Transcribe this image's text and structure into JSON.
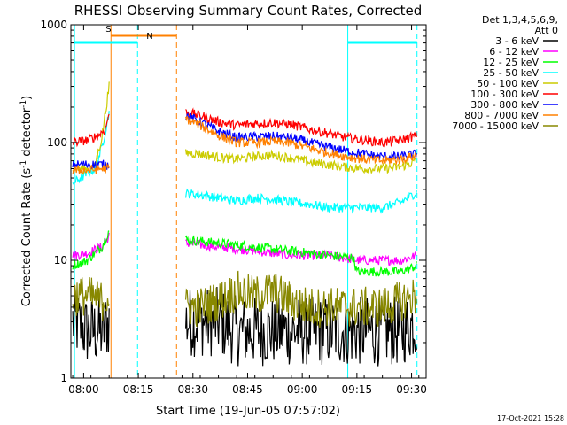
{
  "chart_data": {
    "type": "line",
    "title": "RHESSI Observing Summary Count Rates, Corrected",
    "xlabel": "Start Time (19-Jun-05 07:57:02)",
    "ylabel_main": "Corrected Count Rate (s",
    "ylabel_sup1": "-1",
    "ylabel_mid": " detector",
    "ylabel_sup2": "-1",
    "ylabel_end": ")",
    "y_scale": "log",
    "ylim": [
      1,
      1000
    ],
    "xlim_minutes": [
      -0.5,
      97
    ],
    "x_ticks": [
      {
        "label": "08:00",
        "min": 3
      },
      {
        "label": "08:15",
        "min": 18
      },
      {
        "label": "08:30",
        "min": 33
      },
      {
        "label": "08:45",
        "min": 48
      },
      {
        "label": "09:00",
        "min": 63
      },
      {
        "label": "09:15",
        "min": 78
      },
      {
        "label": "09:30",
        "min": 93
      }
    ],
    "y_ticks": [
      {
        "label": "1",
        "value": 1
      },
      {
        "label": "10",
        "value": 10
      },
      {
        "label": "100",
        "value": 100
      },
      {
        "label": "1000",
        "value": 1000
      }
    ],
    "legend_title": [
      "Det 1,3,4,5,6,9,",
      "Att 0"
    ],
    "legend_placement": "right",
    "series": [
      {
        "name": "3 - 6 keV",
        "color": "#000000",
        "seg1": [
          [
            0,
            3
          ],
          [
            4,
            2.5
          ],
          [
            8,
            2.5
          ],
          [
            10,
            3
          ]
        ],
        "seg2": [
          [
            31,
            3
          ],
          [
            40,
            3
          ],
          [
            45,
            2.5
          ],
          [
            50,
            2.5
          ],
          [
            55,
            2.5
          ],
          [
            60,
            2.5
          ],
          [
            65,
            2.5
          ],
          [
            70,
            2.5
          ],
          [
            75,
            2.5
          ],
          [
            80,
            2.5
          ],
          [
            85,
            2.5
          ],
          [
            90,
            2.5
          ],
          [
            94.5,
            3
          ]
        ]
      },
      {
        "name": "6 - 12 keV",
        "color": "#ff00ff",
        "seg1": [
          [
            0,
            11
          ],
          [
            4,
            11.5
          ],
          [
            8,
            13
          ],
          [
            10,
            16
          ]
        ],
        "seg2": [
          [
            31,
            14
          ],
          [
            40,
            13
          ],
          [
            50,
            12
          ],
          [
            60,
            11
          ],
          [
            70,
            11
          ],
          [
            78,
            10
          ],
          [
            85,
            10
          ],
          [
            90,
            10
          ],
          [
            94.5,
            11
          ]
        ]
      },
      {
        "name": "12 - 25 keV",
        "color": "#00ff00",
        "seg1": [
          [
            0,
            9
          ],
          [
            4,
            10
          ],
          [
            8,
            13
          ],
          [
            10,
            18
          ]
        ],
        "seg2": [
          [
            31,
            15
          ],
          [
            40,
            14
          ],
          [
            50,
            13
          ],
          [
            60,
            12
          ],
          [
            70,
            11
          ],
          [
            77,
            10.5
          ],
          [
            78,
            8
          ],
          [
            85,
            8
          ],
          [
            90,
            8
          ],
          [
            94.5,
            9
          ]
        ]
      },
      {
        "name": "25 - 50 keV",
        "color": "#00ffff",
        "seg1": [
          [
            0,
            45
          ],
          [
            4,
            55
          ],
          [
            6,
            60
          ],
          [
            8,
            90
          ],
          [
            10,
            180
          ]
        ],
        "seg2": [
          [
            31,
            37
          ],
          [
            35,
            36
          ],
          [
            40,
            34
          ],
          [
            45,
            32
          ],
          [
            50,
            34
          ],
          [
            55,
            33
          ],
          [
            60,
            31
          ],
          [
            65,
            30
          ],
          [
            70,
            28
          ],
          [
            75,
            28
          ],
          [
            80,
            28
          ],
          [
            85,
            28
          ],
          [
            90,
            31
          ],
          [
            94.5,
            38
          ]
        ]
      },
      {
        "name": "50 - 100 keV",
        "color": "#cccc00",
        "seg1": [
          [
            0,
            60
          ],
          [
            4,
            60
          ],
          [
            6,
            62
          ],
          [
            8,
            110
          ],
          [
            10,
            300
          ]
        ],
        "seg2": [
          [
            31,
            82
          ],
          [
            35,
            80
          ],
          [
            40,
            75
          ],
          [
            45,
            72
          ],
          [
            50,
            76
          ],
          [
            55,
            78
          ],
          [
            60,
            74
          ],
          [
            65,
            68
          ],
          [
            70,
            65
          ],
          [
            75,
            62
          ],
          [
            80,
            60
          ],
          [
            85,
            60
          ],
          [
            90,
            62
          ],
          [
            94.5,
            70
          ]
        ]
      },
      {
        "name": "100 - 300 keV",
        "color": "#ff0000",
        "seg1": [
          [
            0,
            100
          ],
          [
            4,
            105
          ],
          [
            7,
            115
          ],
          [
            9,
            130
          ],
          [
            10,
            180
          ]
        ],
        "seg2": [
          [
            31,
            180
          ],
          [
            35,
            170
          ],
          [
            40,
            150
          ],
          [
            45,
            140
          ],
          [
            50,
            145
          ],
          [
            55,
            148
          ],
          [
            60,
            142
          ],
          [
            65,
            130
          ],
          [
            70,
            120
          ],
          [
            75,
            110
          ],
          [
            80,
            105
          ],
          [
            85,
            100
          ],
          [
            90,
            105
          ],
          [
            94.5,
            115
          ]
        ]
      },
      {
        "name": "300 - 800 keV",
        "color": "#0000ff",
        "seg1": [
          [
            0,
            65
          ],
          [
            4,
            65
          ],
          [
            8,
            65
          ],
          [
            10,
            65
          ]
        ],
        "seg2": [
          [
            31,
            170
          ],
          [
            35,
            150
          ],
          [
            40,
            125
          ],
          [
            45,
            110
          ],
          [
            50,
            112
          ],
          [
            55,
            113
          ],
          [
            60,
            110
          ],
          [
            65,
            100
          ],
          [
            70,
            92
          ],
          [
            75,
            85
          ],
          [
            80,
            80
          ],
          [
            85,
            76
          ],
          [
            90,
            76
          ],
          [
            94.5,
            80
          ]
        ]
      },
      {
        "name": "800 - 7000 keV",
        "color": "#ff8000",
        "seg1": [
          [
            0,
            58
          ],
          [
            4,
            58
          ],
          [
            8,
            60
          ],
          [
            10,
            60
          ]
        ],
        "seg2": [
          [
            31,
            160
          ],
          [
            35,
            140
          ],
          [
            40,
            115
          ],
          [
            45,
            100
          ],
          [
            50,
            100
          ],
          [
            55,
            102
          ],
          [
            60,
            98
          ],
          [
            65,
            90
          ],
          [
            70,
            82
          ],
          [
            75,
            76
          ],
          [
            80,
            72
          ],
          [
            85,
            70
          ],
          [
            90,
            72
          ],
          [
            94.5,
            78
          ]
        ]
      },
      {
        "name": "7000 - 15000 keV",
        "color": "#888800",
        "seg1": [
          [
            0,
            5
          ],
          [
            4,
            5
          ],
          [
            8,
            4.5
          ],
          [
            10,
            5
          ]
        ],
        "seg2": [
          [
            31,
            4
          ],
          [
            35,
            4
          ],
          [
            40,
            4.5
          ],
          [
            45,
            5.5
          ],
          [
            50,
            5
          ],
          [
            55,
            5.5
          ],
          [
            60,
            4.5
          ],
          [
            65,
            4
          ],
          [
            70,
            4
          ],
          [
            75,
            4
          ],
          [
            80,
            4
          ],
          [
            85,
            4
          ],
          [
            90,
            4.5
          ],
          [
            94.5,
            5
          ]
        ]
      }
    ],
    "flags": [
      {
        "label": "S",
        "color": "#ff8000",
        "from_min": 10.5,
        "to_min": 28.5
      },
      {
        "label": "N",
        "color": "#00ffff",
        "from_min": 0.5,
        "to_min": 17.8
      },
      {
        "label": "",
        "color": "#00ffff",
        "from_min": 75.5,
        "to_min": 94.5
      }
    ],
    "event_lines": [
      {
        "min": 0.5,
        "color": "#00ffff",
        "style": "solid"
      },
      {
        "min": 10.5,
        "color": "#ff8000",
        "style": "solid"
      },
      {
        "min": 17.8,
        "color": "#00ffff",
        "style": "dashed"
      },
      {
        "min": 28.5,
        "color": "#ff8000",
        "style": "dashed"
      },
      {
        "min": 75.5,
        "color": "#00ffff",
        "style": "solid"
      },
      {
        "min": 94.5,
        "color": "#00ffff",
        "style": "dashed"
      }
    ]
  },
  "footer_date": "17-Oct-2021 15:28"
}
